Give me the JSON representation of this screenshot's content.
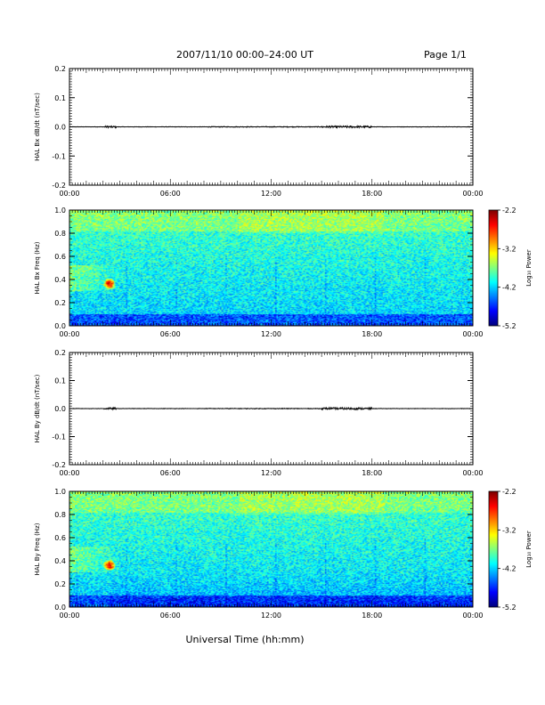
{
  "header": {
    "title": "2007/11/10   00:00–24:00 UT",
    "page": "Page 1/1"
  },
  "xlabel": "Universal Time (hh:mm)",
  "chart_data": [
    {
      "type": "line",
      "ylabel": "HAL Bx dB/dt (nT/sec)",
      "xlim": [
        0,
        24
      ],
      "ylim": [
        -0.22,
        0.22
      ],
      "x_ticks": [
        "00:00",
        "06:00",
        "12:00",
        "18:00",
        "00:00"
      ],
      "y_ticks": [
        "0.2",
        "0.1",
        "0.0",
        "-0.1",
        "-0.2"
      ],
      "series": [
        {
          "x": [
            0,
            2.3,
            2.5,
            8,
            12,
            15.5,
            16.5,
            18,
            24
          ],
          "y": [
            0,
            0.003,
            -0.003,
            0,
            0,
            0.004,
            -0.004,
            0,
            0
          ]
        }
      ]
    },
    {
      "type": "heatmap",
      "ylabel": "HAL Bx Freq (Hz)",
      "xlim": [
        0,
        24
      ],
      "ylim": [
        0,
        1
      ],
      "x_ticks": [
        "00:00",
        "06:00",
        "12:00",
        "18:00",
        "00:00"
      ],
      "y_ticks": [
        "1.0",
        "0.8",
        "0.6",
        "0.4",
        "0.2",
        "0.0"
      ],
      "colorbar": {
        "label": "Log₁₀ Power",
        "ticks": [
          "-2.2",
          "-3.2",
          "-4.2",
          "-5.2"
        ],
        "range": [
          -5.2,
          -2.2
        ]
      }
    },
    {
      "type": "line",
      "ylabel": "HAL By dB/dt (nT/sec)",
      "xlim": [
        0,
        24
      ],
      "ylim": [
        -0.22,
        0.22
      ],
      "x_ticks": [
        "00:00",
        "06:00",
        "12:00",
        "18:00",
        "00:00"
      ],
      "y_ticks": [
        "0.2",
        "0.1",
        "0.0",
        "-0.1",
        "-0.2"
      ],
      "series": [
        {
          "x": [
            0,
            2.3,
            2.5,
            8,
            12,
            15.5,
            16.5,
            18,
            24
          ],
          "y": [
            0,
            0.003,
            -0.003,
            0,
            0,
            0.004,
            -0.004,
            0,
            0
          ]
        }
      ]
    },
    {
      "type": "heatmap",
      "ylabel": "HAL By Freq (Hz)",
      "xlim": [
        0,
        24
      ],
      "ylim": [
        0,
        1
      ],
      "x_ticks": [
        "00:00",
        "06:00",
        "12:00",
        "18:00",
        "00:00"
      ],
      "y_ticks": [
        "1.0",
        "0.8",
        "0.6",
        "0.4",
        "0.2",
        "0.0"
      ],
      "colorbar": {
        "label": "Log₁₀ Power",
        "ticks": [
          "-2.2",
          "-3.2",
          "-4.2",
          "-5.2"
        ],
        "range": [
          -5.2,
          -2.2
        ]
      }
    }
  ]
}
